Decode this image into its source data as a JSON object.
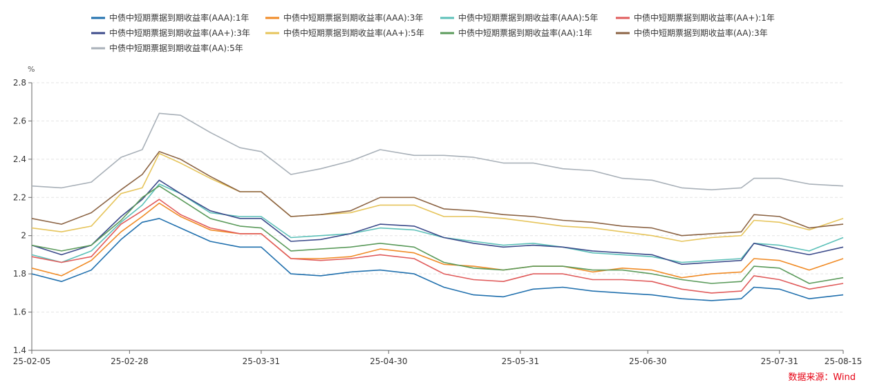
{
  "source_label": "数据来源：Wind",
  "chart_data": {
    "type": "line",
    "title": "",
    "ylabel": "%",
    "ylim": [
      1.4,
      2.8
    ],
    "yticks": [
      1.4,
      1.6,
      1.8,
      2.0,
      2.2,
      2.4,
      2.6,
      2.8
    ],
    "ytick_labels": [
      "1.4",
      "1.6",
      "1.8",
      "2",
      "2.2",
      "2.4",
      "2.6",
      "2.8"
    ],
    "grid": true,
    "legend_position": "top",
    "x_ticks": [
      {
        "date": "2025-02-05",
        "label": "25-02-05"
      },
      {
        "date": "2025-02-28",
        "label": "25-02-28"
      },
      {
        "date": "2025-03-31",
        "label": "25-03-31"
      },
      {
        "date": "2025-04-30",
        "label": "25-04-30"
      },
      {
        "date": "2025-05-31",
        "label": "25-05-31"
      },
      {
        "date": "2025-06-30",
        "label": "25-06-30"
      },
      {
        "date": "2025-07-31",
        "label": "25-07-31"
      },
      {
        "date": "2025-08-15",
        "label": "25-08-15"
      }
    ],
    "x": [
      "2025-02-05",
      "2025-02-12",
      "2025-02-19",
      "2025-02-26",
      "2025-03-03",
      "2025-03-07",
      "2025-03-12",
      "2025-03-19",
      "2025-03-26",
      "2025-03-31",
      "2025-04-07",
      "2025-04-14",
      "2025-04-21",
      "2025-04-28",
      "2025-05-06",
      "2025-05-13",
      "2025-05-20",
      "2025-05-27",
      "2025-06-03",
      "2025-06-10",
      "2025-06-17",
      "2025-06-24",
      "2025-07-01",
      "2025-07-08",
      "2025-07-15",
      "2025-07-22",
      "2025-07-25",
      "2025-07-31",
      "2025-08-07",
      "2025-08-15"
    ],
    "series": [
      {
        "name": "中债中短期票据到期收益率(AAA):1年",
        "color": "#1f6fad",
        "values": [
          1.8,
          1.76,
          1.82,
          1.98,
          2.07,
          2.09,
          2.04,
          1.97,
          1.94,
          1.94,
          1.8,
          1.79,
          1.81,
          1.82,
          1.8,
          1.73,
          1.69,
          1.68,
          1.72,
          1.73,
          1.71,
          1.7,
          1.69,
          1.67,
          1.66,
          1.67,
          1.73,
          1.72,
          1.67,
          1.69
        ]
      },
      {
        "name": "中债中短期票据到期收益率(AAA):3年",
        "color": "#f08a24",
        "values": [
          1.83,
          1.79,
          1.87,
          2.02,
          2.1,
          2.17,
          2.1,
          2.03,
          2.01,
          2.01,
          1.88,
          1.88,
          1.89,
          1.93,
          1.91,
          1.85,
          1.84,
          1.82,
          1.84,
          1.84,
          1.81,
          1.83,
          1.82,
          1.78,
          1.8,
          1.81,
          1.88,
          1.87,
          1.82,
          1.88
        ]
      },
      {
        "name": "中债中短期票据到期收益率(AAA):5年",
        "color": "#5bc0b8",
        "values": [
          1.9,
          1.86,
          1.92,
          2.07,
          2.16,
          2.27,
          2.22,
          2.12,
          2.1,
          2.1,
          1.99,
          2.0,
          2.01,
          2.04,
          2.03,
          1.99,
          1.97,
          1.95,
          1.96,
          1.94,
          1.91,
          1.9,
          1.89,
          1.86,
          1.87,
          1.88,
          1.96,
          1.95,
          1.92,
          1.99
        ]
      },
      {
        "name": "中债中短期票据到期收益率(AA+):1年",
        "color": "#e05a5a",
        "values": [
          1.89,
          1.86,
          1.89,
          2.06,
          2.13,
          2.19,
          2.11,
          2.04,
          2.01,
          2.01,
          1.88,
          1.87,
          1.88,
          1.9,
          1.88,
          1.8,
          1.77,
          1.76,
          1.8,
          1.8,
          1.77,
          1.77,
          1.76,
          1.72,
          1.7,
          1.71,
          1.79,
          1.77,
          1.72,
          1.75
        ]
      },
      {
        "name": "中债中短期票据到期收益率(AA+):3年",
        "color": "#3b4a8a",
        "values": [
          1.95,
          1.9,
          1.95,
          2.1,
          2.19,
          2.29,
          2.22,
          2.13,
          2.09,
          2.09,
          1.97,
          1.98,
          2.01,
          2.06,
          2.05,
          1.99,
          1.96,
          1.94,
          1.95,
          1.94,
          1.92,
          1.91,
          1.9,
          1.85,
          1.86,
          1.87,
          1.96,
          1.93,
          1.9,
          1.94
        ]
      },
      {
        "name": "中债中短期票据到期收益率(AA+):5年",
        "color": "#e6c45a",
        "values": [
          2.04,
          2.02,
          2.05,
          2.22,
          2.25,
          2.43,
          2.38,
          2.3,
          2.23,
          2.23,
          2.1,
          2.11,
          2.12,
          2.16,
          2.16,
          2.1,
          2.1,
          2.09,
          2.07,
          2.05,
          2.04,
          2.02,
          2.0,
          1.97,
          1.99,
          2.0,
          2.08,
          2.07,
          2.03,
          2.09
        ]
      },
      {
        "name": "中债中短期票据到期收益率(AA):1年",
        "color": "#5a9a5a",
        "values": [
          1.95,
          1.92,
          1.95,
          2.08,
          2.2,
          2.26,
          2.19,
          2.09,
          2.05,
          2.04,
          1.92,
          1.93,
          1.94,
          1.96,
          1.94,
          1.86,
          1.83,
          1.82,
          1.84,
          1.84,
          1.82,
          1.82,
          1.8,
          1.77,
          1.75,
          1.76,
          1.84,
          1.83,
          1.75,
          1.78
        ]
      },
      {
        "name": "中债中短期票据到期收益率(AA):3年",
        "color": "#8b6343",
        "values": [
          2.09,
          2.06,
          2.12,
          2.24,
          2.32,
          2.44,
          2.4,
          2.31,
          2.23,
          2.23,
          2.1,
          2.11,
          2.13,
          2.2,
          2.2,
          2.14,
          2.13,
          2.11,
          2.1,
          2.08,
          2.07,
          2.05,
          2.04,
          2.0,
          2.01,
          2.02,
          2.11,
          2.1,
          2.04,
          2.06
        ]
      },
      {
        "name": "中债中短期票据到期收益率(AA):5年",
        "color": "#a8b0b8",
        "values": [
          2.26,
          2.25,
          2.28,
          2.41,
          2.45,
          2.64,
          2.63,
          2.54,
          2.46,
          2.44,
          2.32,
          2.35,
          2.39,
          2.45,
          2.42,
          2.42,
          2.41,
          2.38,
          2.38,
          2.35,
          2.34,
          2.3,
          2.29,
          2.25,
          2.24,
          2.25,
          2.3,
          2.3,
          2.27,
          2.26
        ]
      }
    ]
  }
}
